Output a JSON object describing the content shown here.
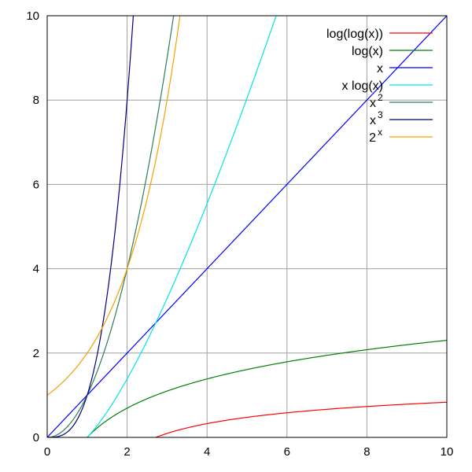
{
  "chart_data": {
    "type": "line",
    "title": "",
    "xlabel": "",
    "ylabel": "",
    "xlim": [
      0,
      10
    ],
    "ylim": [
      0,
      10
    ],
    "grid": true,
    "legend_position": "top-right",
    "x_ticks": [
      0,
      2,
      4,
      6,
      8,
      10
    ],
    "y_ticks": [
      0,
      2,
      4,
      6,
      8,
      10
    ],
    "x_tick_labels": [
      "0",
      "2",
      "4",
      "6",
      "8",
      "10"
    ],
    "y_tick_labels": [
      "0",
      "2",
      "4",
      "6",
      "8",
      "10"
    ],
    "series": [
      {
        "name": "log(log(x))",
        "label": "log(log(x))",
        "label_sup": "",
        "func": "loglog",
        "color": "#ff0000"
      },
      {
        "name": "log(x)",
        "label": "log(x)",
        "label_sup": "",
        "func": "log",
        "color": "#008000"
      },
      {
        "name": "x",
        "label": "x",
        "label_sup": "",
        "func": "x",
        "color": "#0000ff"
      },
      {
        "name": "x log(x)",
        "label": "x log(x)",
        "label_sup": "",
        "func": "xlogx",
        "color": "#00e5e5"
      },
      {
        "name": "x^2",
        "label": "x",
        "label_sup": "2",
        "func": "x2",
        "color": "#2e7d5b"
      },
      {
        "name": "x^3",
        "label": "x",
        "label_sup": "3",
        "func": "x3",
        "color": "#000080"
      },
      {
        "name": "2^x",
        "label": "2",
        "label_sup": "x",
        "func": "pow2",
        "color": "#f5a000"
      }
    ]
  }
}
